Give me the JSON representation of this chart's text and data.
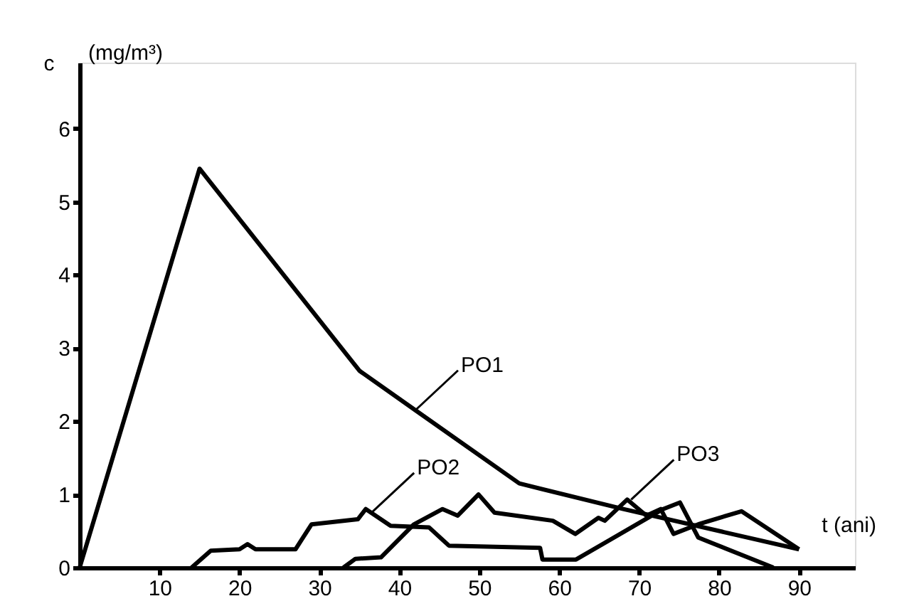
{
  "chart_data": {
    "type": "line",
    "ylabel": "c",
    "xlabel": "t (ani)",
    "xlim": [
      0,
      97
    ],
    "ylim": [
      0,
      6.9
    ],
    "xticks": [
      10,
      20,
      30,
      40,
      50,
      60,
      70,
      80,
      90
    ],
    "yticks": [
      0,
      1,
      2,
      3,
      4,
      5,
      6
    ],
    "grid": false,
    "marker": "none",
    "line_style": "solid",
    "series": [
      {
        "color": "#000000",
        "x": [
          0,
          15,
          35,
          42,
          55,
          68,
          90
        ],
        "values": [
          0,
          5.45,
          2.69,
          2.15,
          1.15,
          0.8,
          0.25
        ]
      },
      {
        "color": "#000000",
        "x": [
          14,
          16.4,
          20,
          21,
          22,
          27,
          29,
          34.8,
          35.8,
          38.9,
          43.7,
          46.2,
          57.6,
          57.9,
          62.1,
          73,
          75.1,
          77.4,
          86.8
        ],
        "values": [
          0,
          0.23,
          0.25,
          0.32,
          0.25,
          0.25,
          0.59,
          0.66,
          0.8,
          0.57,
          0.55,
          0.3,
          0.27,
          0.11,
          0.11,
          0.8,
          0.89,
          0.41,
          0
        ]
      },
      {
        "color": "#000000",
        "x": [
          33,
          34.5,
          37.7,
          41.8,
          45.4,
          47.3,
          49.9,
          51.9,
          59.2,
          62,
          64.9,
          65.7,
          68.5,
          70.9,
          72.7,
          74.3,
          77.6,
          82.8,
          90
        ],
        "values": [
          0,
          0.12,
          0.14,
          0.59,
          0.8,
          0.71,
          1.0,
          0.75,
          0.64,
          0.46,
          0.68,
          0.64,
          0.93,
          0.71,
          0.8,
          0.46,
          0.6,
          0.77,
          0.25
        ]
      }
    ],
    "annotations": [
      "(mg/m³)",
      {
        "text": "PO1",
        "x": 42,
        "y": 2.15
      },
      {
        "text": "PO2",
        "x": 36.5,
        "y": 0.75
      },
      {
        "text": "PO3",
        "x": 69,
        "y": 0.93
      }
    ]
  }
}
